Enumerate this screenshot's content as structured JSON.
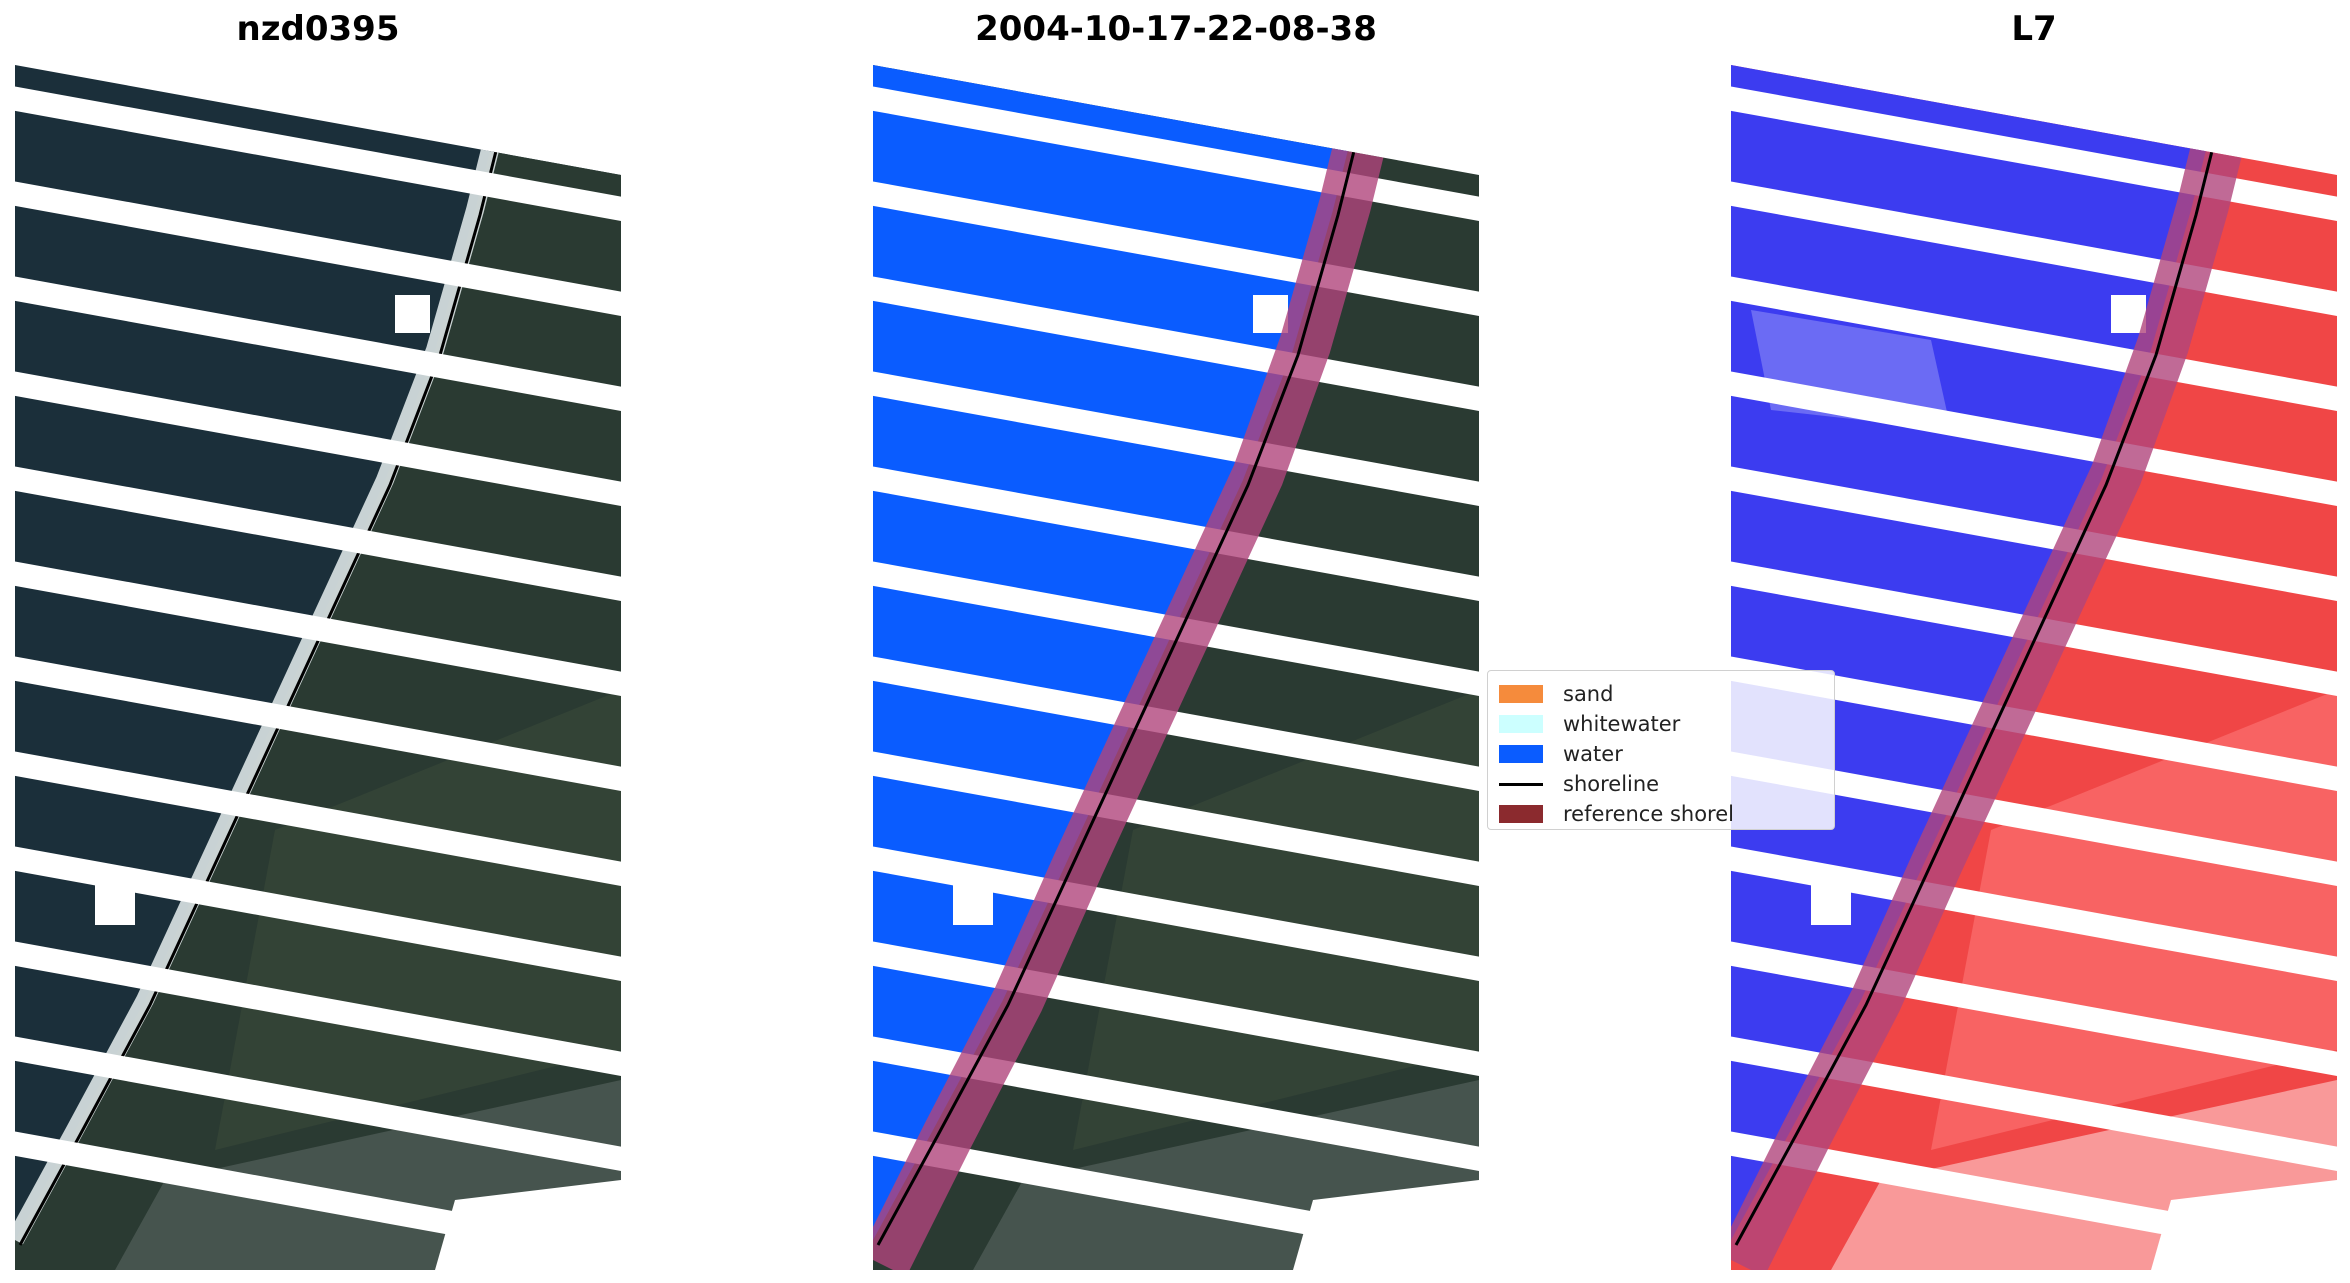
{
  "panels": [
    {
      "title": "nzd0395"
    },
    {
      "title": "2004-10-17-22-08-38"
    },
    {
      "title": "L7"
    }
  ],
  "legend": {
    "items": [
      {
        "label": "sand",
        "color": "#f58b3c",
        "kind": "patch"
      },
      {
        "label": "whitewater",
        "color": "#ccffff",
        "kind": "patch"
      },
      {
        "label": "water",
        "color": "#0a5cff",
        "kind": "patch"
      },
      {
        "label": "shoreline",
        "color": "#000000",
        "kind": "line"
      },
      {
        "label": "reference shoreline",
        "color": "#8b2a2e",
        "kind": "patch"
      }
    ]
  },
  "colors": {
    "sea": "#1b2f3a",
    "land": "#2a3a32",
    "surf": "#e6eef0",
    "water_class": "#0a5cff",
    "reference_band": "#b0457c",
    "index_water": "#3c3cf0",
    "index_land": "#f04646"
  }
}
